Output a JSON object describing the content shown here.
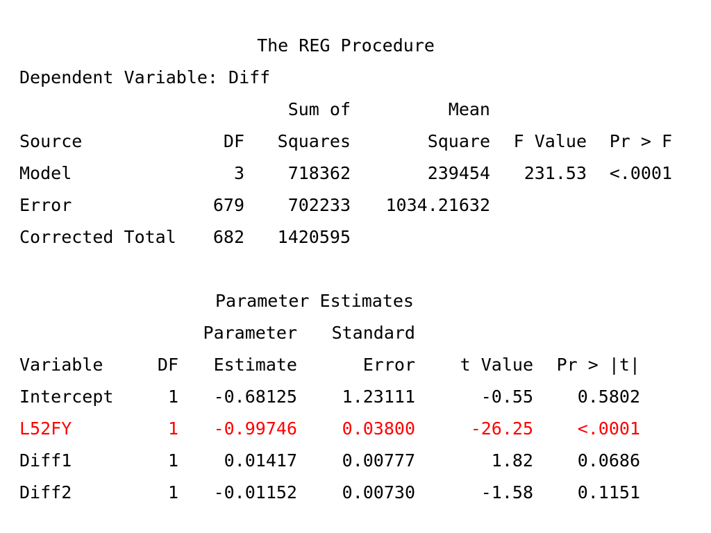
{
  "title": "The REG Procedure",
  "dependent": "Dependent Variable: Diff",
  "anova": {
    "header_top": [
      "",
      "",
      "Sum of",
      "Mean",
      "",
      ""
    ],
    "header": [
      "Source",
      "DF",
      "Squares",
      "Square",
      "F Value",
      "Pr > F"
    ],
    "rows": [
      [
        "Model",
        "3",
        "718362",
        "239454",
        "231.53",
        "<.0001"
      ],
      [
        "Error",
        "679",
        "702233",
        "1034.21632",
        "",
        ""
      ],
      [
        "Corrected Total",
        "682",
        "1420595",
        "",
        "",
        ""
      ]
    ]
  },
  "params": {
    "title": "Parameter Estimates",
    "header_top": [
      "",
      "",
      "Parameter",
      "Standard",
      "",
      ""
    ],
    "header": [
      "Variable",
      "DF",
      "Estimate",
      "Error",
      "t Value",
      "Pr > |t|"
    ],
    "rows": [
      [
        "Intercept",
        "1",
        "-0.68125",
        "1.23111",
        "-0.55",
        "0.5802"
      ],
      [
        "L52FY",
        "1",
        "-0.99746",
        "0.03800",
        "-26.25",
        "<.0001"
      ],
      [
        "Diff1",
        "1",
        "0.01417",
        "0.00777",
        "1.82",
        "0.0686"
      ],
      [
        "Diff2",
        "1",
        "-0.01152",
        "0.00730",
        "-1.58",
        "0.1151"
      ]
    ],
    "highlight_row": "L52FY"
  },
  "highlight_color": "#ff0000"
}
